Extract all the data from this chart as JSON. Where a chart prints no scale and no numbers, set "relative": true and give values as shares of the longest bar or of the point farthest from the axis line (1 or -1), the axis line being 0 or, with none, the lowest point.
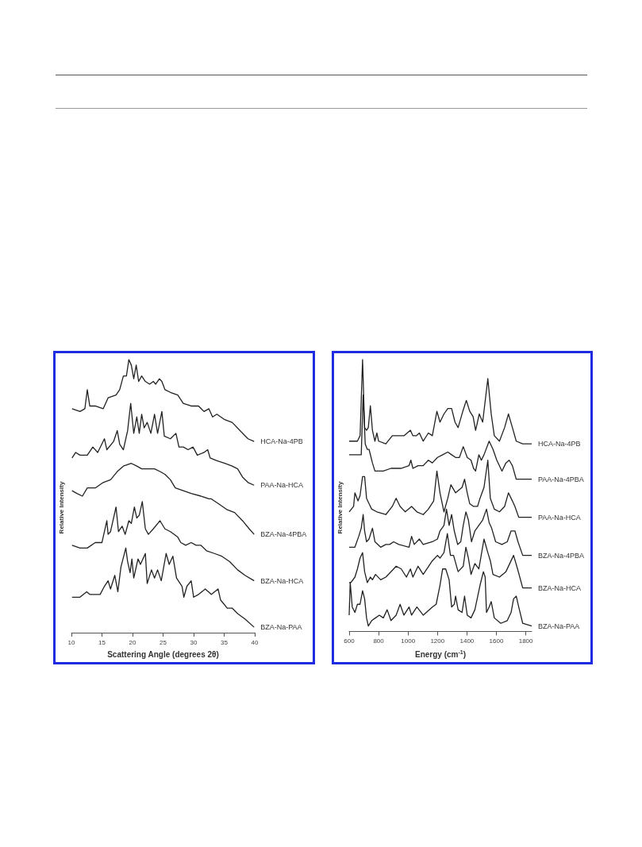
{
  "chart_data": [
    {
      "type": "line",
      "xlabel": "Scattering Angle (degrees 2θ)",
      "ylabel": "Relative Intensity",
      "xlim": [
        10,
        40
      ],
      "xticks": [
        10,
        15,
        20,
        25,
        30,
        35,
        40
      ],
      "relative": true,
      "legend": false,
      "grid": false,
      "marker": "none",
      "line_style": "solid",
      "series": [
        {
          "name": "HCA-Na-4PB",
          "color": "#222222",
          "x": [
            10.1,
            11.4,
            12.2,
            12.6,
            13.0,
            13.9,
            15.2,
            16.0,
            17.3,
            17.9,
            18.5,
            19.0,
            19.4,
            19.8,
            20.2,
            20.6,
            21.0,
            21.5,
            22.1,
            22.8,
            23.4,
            23.8,
            24.4,
            24.8,
            25.3,
            26.2,
            27.4,
            28.3,
            29.6,
            30.8,
            31.7,
            32.5,
            33.1,
            33.8,
            35.1,
            36.3,
            37.6,
            38.9,
            39.9
          ],
          "values": [
            0.82,
            0.81,
            0.82,
            0.89,
            0.83,
            0.83,
            0.82,
            0.86,
            0.87,
            0.89,
            0.94,
            0.94,
            1.0,
            0.98,
            0.93,
            0.98,
            0.92,
            0.94,
            0.92,
            0.91,
            0.92,
            0.91,
            0.93,
            0.92,
            0.89,
            0.88,
            0.87,
            0.84,
            0.83,
            0.83,
            0.81,
            0.82,
            0.79,
            0.8,
            0.78,
            0.77,
            0.74,
            0.71,
            0.7
          ]
        },
        {
          "name": "PAA-Na-HCA",
          "color": "#222222",
          "x": [
            10.1,
            10.7,
            11.4,
            12.6,
            13.5,
            14.3,
            15.4,
            15.8,
            16.9,
            17.5,
            17.9,
            18.5,
            19.2,
            19.7,
            20.2,
            20.7,
            21.1,
            21.5,
            21.9,
            22.4,
            23.0,
            23.6,
            24.1,
            24.8,
            25.2,
            26.2,
            27.1,
            27.6,
            28.3,
            29.1,
            29.9,
            30.6,
            31.7,
            32.3,
            32.7,
            33.8,
            35.1,
            36.3,
            37.2,
            38.0,
            38.9,
            39.9
          ],
          "values": [
            0.64,
            0.66,
            0.65,
            0.65,
            0.68,
            0.66,
            0.71,
            0.67,
            0.7,
            0.74,
            0.69,
            0.67,
            0.74,
            0.84,
            0.73,
            0.79,
            0.73,
            0.8,
            0.75,
            0.77,
            0.73,
            0.8,
            0.73,
            0.81,
            0.72,
            0.71,
            0.73,
            0.68,
            0.68,
            0.67,
            0.68,
            0.65,
            0.66,
            0.67,
            0.64,
            0.63,
            0.62,
            0.61,
            0.6,
            0.57,
            0.55,
            0.54
          ]
        },
        {
          "name": "BZA-Na-4PBA",
          "color": "#222222",
          "x": [
            10.1,
            10.9,
            11.8,
            12.6,
            13.9,
            15.2,
            16.4,
            17.5,
            18.5,
            19.8,
            20.7,
            21.5,
            22.4,
            23.6,
            24.5,
            25.3,
            26.2,
            27.0,
            28.3,
            29.6,
            31.2,
            32.5,
            32.9,
            34.2,
            35.5,
            36.7,
            38.0,
            39.1,
            39.9
          ],
          "values": [
            0.52,
            0.51,
            0.5,
            0.53,
            0.53,
            0.55,
            0.56,
            0.59,
            0.61,
            0.62,
            0.61,
            0.6,
            0.6,
            0.6,
            0.59,
            0.58,
            0.56,
            0.53,
            0.52,
            0.51,
            0.5,
            0.49,
            0.49,
            0.47,
            0.45,
            0.44,
            0.41,
            0.38,
            0.36
          ]
        },
        {
          "name": "BZA-Na-HCA",
          "color": "#222222",
          "x": [
            10.1,
            11.4,
            12.6,
            13.9,
            15.0,
            15.8,
            16.0,
            16.4,
            17.3,
            17.7,
            18.3,
            18.8,
            19.4,
            19.8,
            20.3,
            20.7,
            21.1,
            21.6,
            22.1,
            22.6,
            23.4,
            24.5,
            25.3,
            26.2,
            27.4,
            27.9,
            28.7,
            29.6,
            30.4,
            31.2,
            32.1,
            33.4,
            34.6,
            35.9,
            37.2,
            38.4,
            39.9
          ],
          "values": [
            0.32,
            0.31,
            0.31,
            0.33,
            0.33,
            0.41,
            0.36,
            0.37,
            0.46,
            0.37,
            0.39,
            0.36,
            0.41,
            0.4,
            0.46,
            0.42,
            0.43,
            0.48,
            0.38,
            0.36,
            0.38,
            0.41,
            0.38,
            0.37,
            0.35,
            0.33,
            0.32,
            0.33,
            0.32,
            0.32,
            0.3,
            0.29,
            0.28,
            0.26,
            0.23,
            0.21,
            0.19
          ]
        },
        {
          "name": "BZA-Na-PAA",
          "color": "#222222",
          "x": [
            10.1,
            11.4,
            12.5,
            13.0,
            14.7,
            15.4,
            16.0,
            16.4,
            17.1,
            17.6,
            18.1,
            18.9,
            19.2,
            19.6,
            19.9,
            20.2,
            20.9,
            21.3,
            22.1,
            22.4,
            23.1,
            23.6,
            24.1,
            24.7,
            25.5,
            26.0,
            26.6,
            27.2,
            28.1,
            28.4,
            28.9,
            29.6,
            30.0,
            30.8,
            31.9,
            32.9,
            34.0,
            34.4,
            35.5,
            36.3,
            37.2,
            38.4,
            39.9
          ],
          "values": [
            0.13,
            0.13,
            0.15,
            0.14,
            0.14,
            0.17,
            0.19,
            0.16,
            0.21,
            0.15,
            0.24,
            0.31,
            0.26,
            0.22,
            0.27,
            0.2,
            0.27,
            0.25,
            0.29,
            0.18,
            0.23,
            0.2,
            0.23,
            0.19,
            0.29,
            0.25,
            0.28,
            0.2,
            0.17,
            0.13,
            0.17,
            0.19,
            0.13,
            0.14,
            0.16,
            0.14,
            0.16,
            0.12,
            0.09,
            0.09,
            0.07,
            0.05,
            0.02
          ]
        }
      ]
    },
    {
      "type": "line",
      "xlabel": "Energy (cm$^{-1}$)",
      "ylabel": "Relative Intensity",
      "xlim": [
        600,
        1840
      ],
      "xticks": [
        600,
        800,
        1000,
        1200,
        1400,
        1600,
        1800
      ],
      "relative": true,
      "legend": false,
      "grid": false,
      "marker": "none",
      "line_style": "solid",
      "series": [
        {
          "name": "HCA-Na-4PB",
          "color": "#222222",
          "x": [
            600,
            656,
            674,
            691,
            705,
            718,
            730,
            744,
            758,
            775,
            788,
            800,
            849,
            893,
            919,
            937,
            972,
            1016,
            1033,
            1056,
            1077,
            1103,
            1138,
            1165,
            1196,
            1217,
            1244,
            1270,
            1296,
            1319,
            1340,
            1372,
            1396,
            1419,
            1442,
            1459,
            1484,
            1507,
            1542,
            1565,
            1586,
            1621,
            1656,
            1682,
            1709,
            1735,
            1779,
            1840
          ],
          "values": [
            0.7,
            0.7,
            0.72,
            1.0,
            0.75,
            0.74,
            0.75,
            0.83,
            0.74,
            0.7,
            0.73,
            0.7,
            0.69,
            0.72,
            0.72,
            0.72,
            0.72,
            0.74,
            0.72,
            0.72,
            0.73,
            0.7,
            0.73,
            0.72,
            0.81,
            0.77,
            0.8,
            0.82,
            0.82,
            0.77,
            0.75,
            0.81,
            0.85,
            0.81,
            0.79,
            0.74,
            0.8,
            0.77,
            0.93,
            0.8,
            0.72,
            0.7,
            0.75,
            0.8,
            0.75,
            0.7,
            0.69,
            0.69
          ]
        },
        {
          "name": "PAA-Na-4PBA",
          "color": "#222222",
          "x": [
            600,
            656,
            682,
            695,
            709,
            723,
            735,
            758,
            775,
            832,
            884,
            954,
            1007,
            1019,
            1033,
            1068,
            1103,
            1138,
            1165,
            1200,
            1235,
            1270,
            1296,
            1323,
            1349,
            1375,
            1402,
            1428,
            1445,
            1459,
            1481,
            1498,
            1516,
            1551,
            1577,
            1603,
            1638,
            1665,
            1687,
            1709,
            1735,
            1779,
            1840
          ],
          "values": [
            0.65,
            0.65,
            0.65,
            0.87,
            0.69,
            0.67,
            0.67,
            0.62,
            0.59,
            0.59,
            0.6,
            0.6,
            0.61,
            0.63,
            0.6,
            0.61,
            0.61,
            0.63,
            0.62,
            0.64,
            0.65,
            0.66,
            0.65,
            0.64,
            0.64,
            0.68,
            0.64,
            0.63,
            0.6,
            0.59,
            0.65,
            0.63,
            0.65,
            0.7,
            0.67,
            0.63,
            0.59,
            0.62,
            0.63,
            0.61,
            0.56,
            0.56,
            0.56
          ]
        },
        {
          "name": "PAA-Na-HCA",
          "color": "#222222",
          "x": [
            600,
            630,
            639,
            660,
            674,
            691,
            705,
            718,
            735,
            753,
            788,
            849,
            893,
            919,
            946,
            981,
            1024,
            1060,
            1103,
            1138,
            1174,
            1196,
            1217,
            1244,
            1270,
            1291,
            1323,
            1367,
            1384,
            1402,
            1419,
            1445,
            1472,
            1489,
            1516,
            1542,
            1559,
            1586,
            1621,
            1656,
            1682,
            1709,
            1726,
            1752,
            1796,
            1840
          ],
          "values": [
            0.44,
            0.46,
            0.51,
            0.48,
            0.5,
            0.57,
            0.57,
            0.49,
            0.47,
            0.45,
            0.44,
            0.43,
            0.46,
            0.49,
            0.46,
            0.44,
            0.46,
            0.44,
            0.43,
            0.45,
            0.48,
            0.59,
            0.51,
            0.44,
            0.49,
            0.54,
            0.51,
            0.53,
            0.56,
            0.51,
            0.47,
            0.46,
            0.46,
            0.49,
            0.53,
            0.63,
            0.49,
            0.45,
            0.44,
            0.46,
            0.51,
            0.48,
            0.46,
            0.42,
            0.42,
            0.42
          ]
        },
        {
          "name": "BZA-Na-4PBA",
          "color": "#222222",
          "x": [
            600,
            639,
            665,
            682,
            695,
            705,
            718,
            735,
            758,
            775,
            814,
            849,
            875,
            902,
            937,
            1007,
            1024,
            1042,
            1077,
            1103,
            1165,
            1200,
            1217,
            1244,
            1261,
            1279,
            1296,
            1314,
            1337,
            1358,
            1375,
            1393,
            1410,
            1431,
            1454,
            1481,
            1507,
            1533,
            1551,
            1568,
            1595,
            1638,
            1674,
            1700,
            1726,
            1747,
            1779,
            1840
          ],
          "values": [
            0.31,
            0.31,
            0.35,
            0.38,
            0.43,
            0.37,
            0.33,
            0.34,
            0.38,
            0.33,
            0.31,
            0.32,
            0.32,
            0.33,
            0.32,
            0.31,
            0.35,
            0.32,
            0.34,
            0.32,
            0.33,
            0.34,
            0.37,
            0.39,
            0.45,
            0.39,
            0.43,
            0.37,
            0.32,
            0.33,
            0.39,
            0.44,
            0.41,
            0.33,
            0.37,
            0.39,
            0.41,
            0.45,
            0.4,
            0.38,
            0.33,
            0.32,
            0.33,
            0.37,
            0.37,
            0.33,
            0.28,
            0.28
          ]
        },
        {
          "name": "BZA-Na-HCA",
          "color": "#222222",
          "x": [
            600,
            612,
            639,
            656,
            674,
            691,
            705,
            723,
            744,
            758,
            779,
            814,
            849,
            902,
            919,
            954,
            989,
            1016,
            1033,
            1068,
            1103,
            1165,
            1200,
            1217,
            1244,
            1267,
            1288,
            1309,
            1340,
            1375,
            1393,
            1410,
            1428,
            1454,
            1481,
            1516,
            1542,
            1559,
            1577,
            1621,
            1665,
            1691,
            1717,
            1744,
            1779,
            1840
          ],
          "values": [
            0.18,
            0.18,
            0.2,
            0.23,
            0.27,
            0.29,
            0.22,
            0.18,
            0.2,
            0.19,
            0.21,
            0.19,
            0.2,
            0.23,
            0.24,
            0.23,
            0.2,
            0.23,
            0.2,
            0.24,
            0.21,
            0.26,
            0.28,
            0.27,
            0.29,
            0.36,
            0.28,
            0.28,
            0.22,
            0.24,
            0.31,
            0.27,
            0.21,
            0.25,
            0.23,
            0.34,
            0.29,
            0.26,
            0.21,
            0.2,
            0.22,
            0.25,
            0.28,
            0.23,
            0.16,
            0.16
          ]
        },
        {
          "name": "BZA-Na-PAA",
          "color": "#222222",
          "x": [
            600,
            607,
            621,
            639,
            656,
            674,
            691,
            705,
            718,
            730,
            753,
            779,
            805,
            832,
            858,
            884,
            919,
            946,
            972,
            1007,
            1024,
            1060,
            1103,
            1165,
            1191,
            1217,
            1235,
            1256,
            1279,
            1296,
            1314,
            1323,
            1340,
            1367,
            1384,
            1402,
            1428,
            1454,
            1489,
            1512,
            1524,
            1533,
            1551,
            1565,
            1586,
            1630,
            1674,
            1700,
            1717,
            1735,
            1752,
            1779,
            1840
          ],
          "values": [
            0.06,
            0.18,
            0.09,
            0.07,
            0.1,
            0.1,
            0.15,
            0.12,
            0.05,
            0.02,
            0.04,
            0.05,
            0.06,
            0.05,
            0.08,
            0.04,
            0.06,
            0.1,
            0.06,
            0.09,
            0.06,
            0.09,
            0.06,
            0.09,
            0.1,
            0.17,
            0.23,
            0.23,
            0.19,
            0.09,
            0.1,
            0.13,
            0.08,
            0.07,
            0.13,
            0.06,
            0.05,
            0.08,
            0.17,
            0.22,
            0.2,
            0.07,
            0.09,
            0.11,
            0.05,
            0.03,
            0.04,
            0.07,
            0.12,
            0.13,
            0.09,
            0.03,
            0.02
          ]
        }
      ]
    }
  ]
}
